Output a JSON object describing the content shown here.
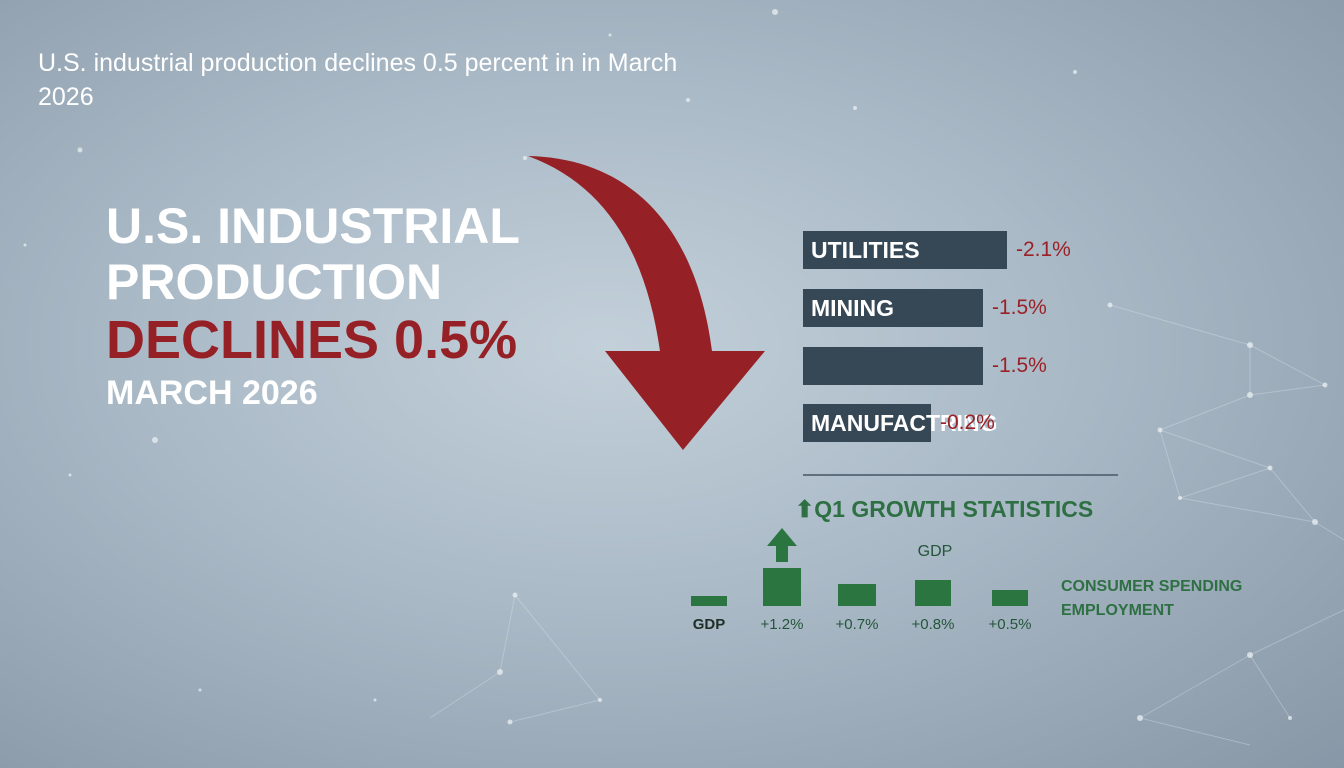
{
  "header": {
    "subheadline": "U.S. industrial production declines 0.5 percent in in March 2026"
  },
  "headline": {
    "line1": "U.S. INDUSTRIAL",
    "line2": "PRODUCTION",
    "line3": "DECLINES 0.5%",
    "line4": "MARCH 2026"
  },
  "colors": {
    "decline_red": "#952126",
    "bar_dark": "#364755",
    "growth_green": "#2b7540"
  },
  "chart_data": [
    {
      "type": "bar",
      "orientation": "horizontal",
      "categories": [
        "UTILITIES",
        "MINING",
        "",
        "MANUFACTRING"
      ],
      "values": [
        -2.1,
        -1.5,
        -1.5,
        -0.2
      ],
      "value_labels": [
        "-2.1%",
        "-1.5%",
        "-1.5%",
        "-0.2%"
      ]
    },
    {
      "type": "bar",
      "title": "Q1 GROWTH STATISTICS",
      "categories": [
        "GDP",
        "",
        "",
        "",
        ""
      ],
      "values": [
        0.3,
        1.2,
        0.7,
        0.8,
        0.5
      ],
      "value_labels": [
        "",
        "+1.2%",
        "+0.7%",
        "+0.8%",
        "+0.5%"
      ],
      "bar_top_label": "GDP",
      "legend": [
        "CONSUMER SPENDING",
        "EMPLOYMENT"
      ]
    }
  ]
}
